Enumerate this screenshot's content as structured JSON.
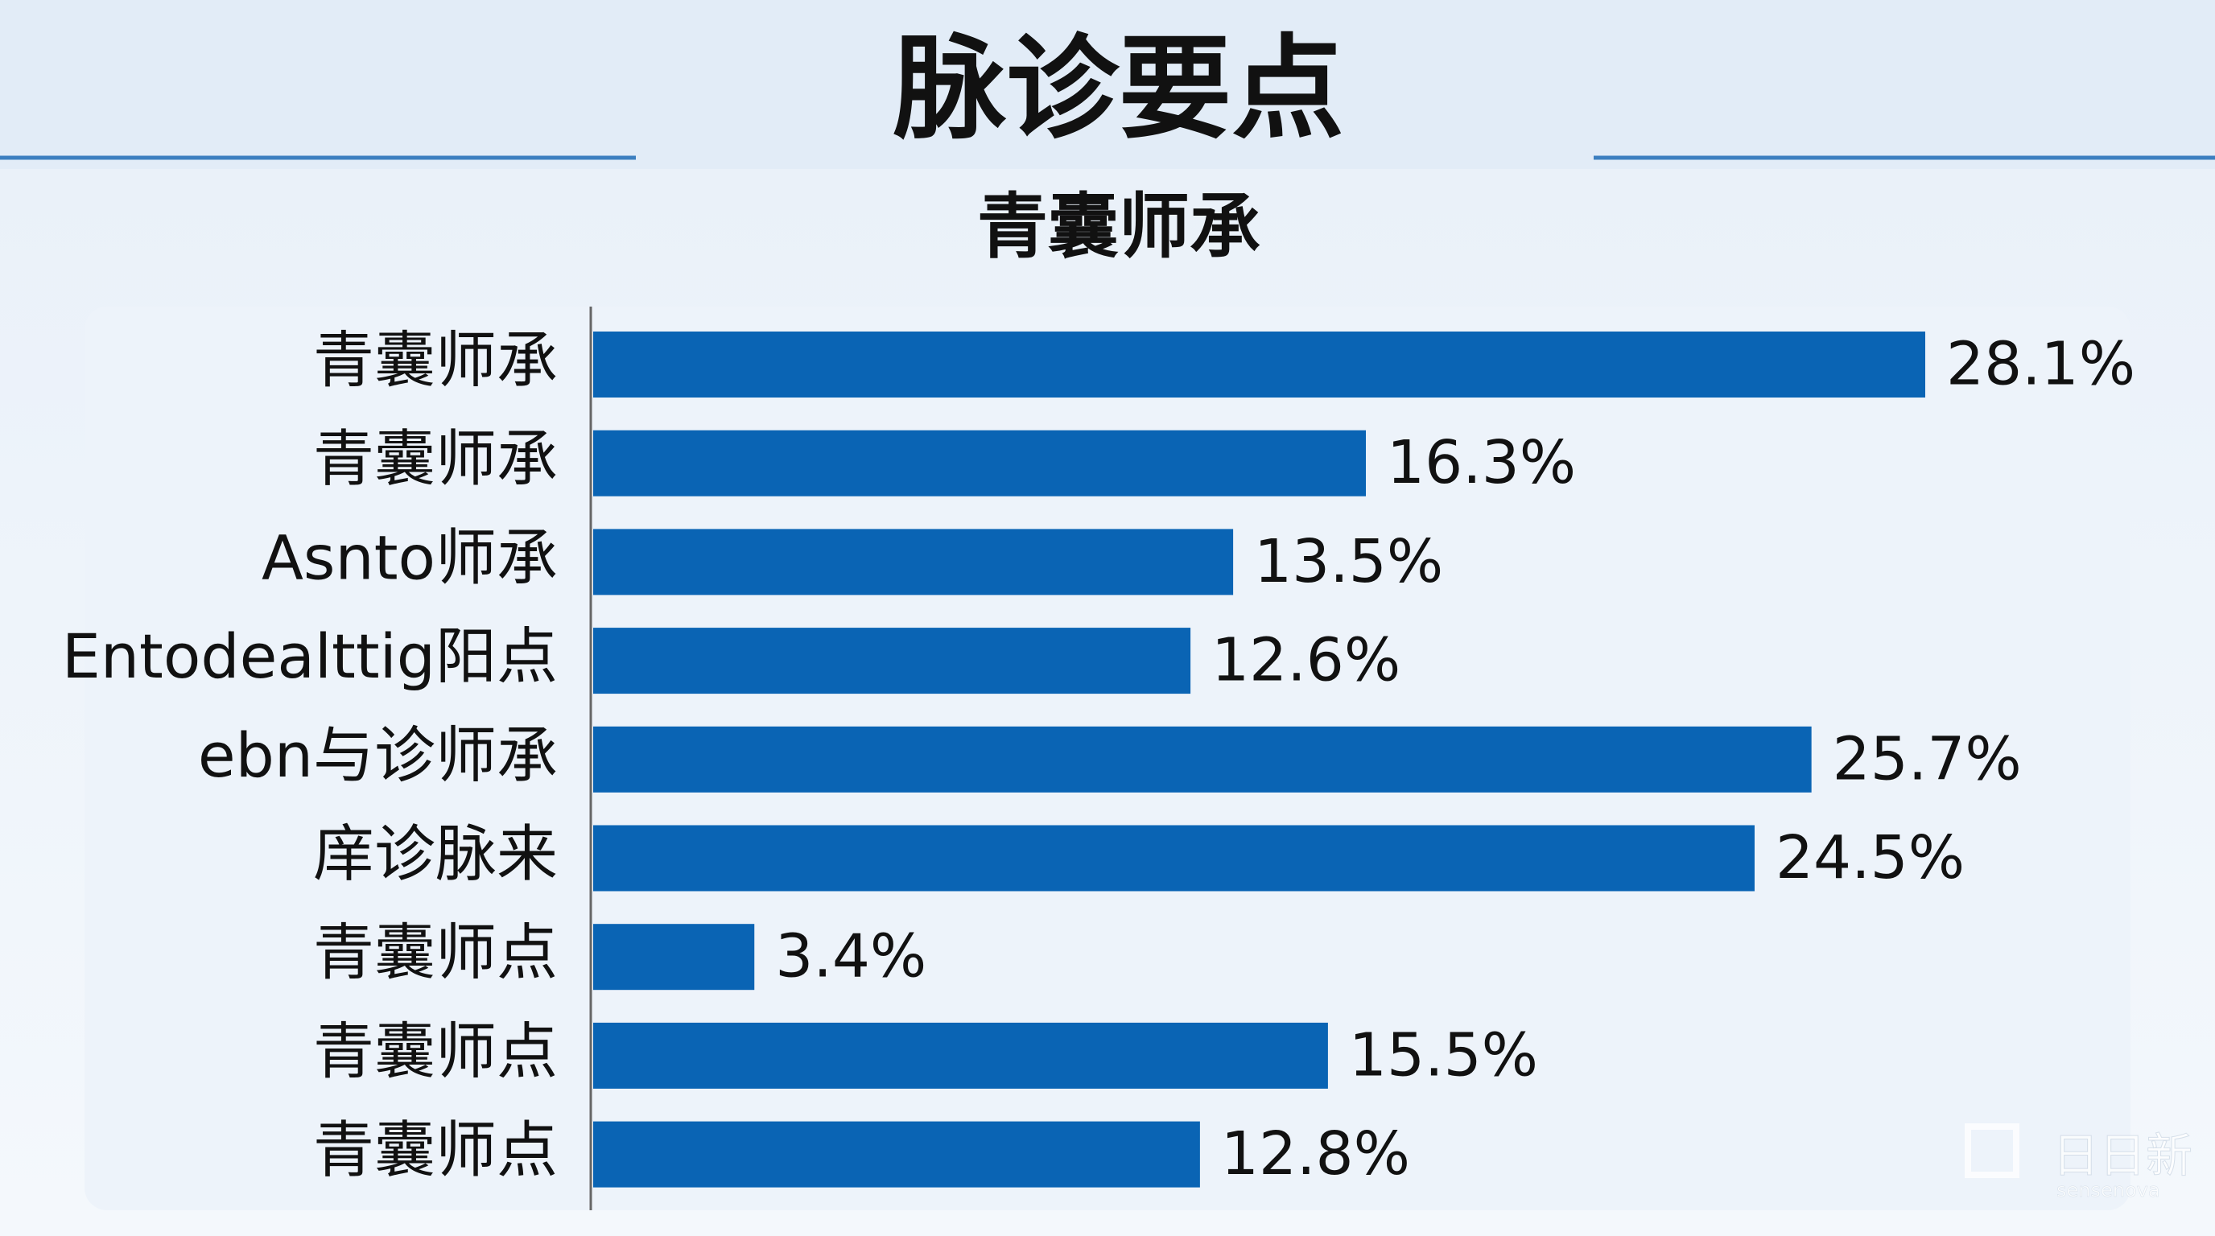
{
  "chart_data": {
    "type": "bar",
    "orientation": "horizontal",
    "title": "脉诊要点",
    "subtitle": "青囊师承",
    "categories": [
      "青囊师承",
      "青囊师承",
      "Asnto师承",
      "Entodealttig阳点",
      "ebn与诊师承",
      "庠诊脉来",
      "青囊师点",
      "青囊师点",
      "青囊师点"
    ],
    "values": [
      28.1,
      16.3,
      13.5,
      12.6,
      25.7,
      24.5,
      3.4,
      15.5,
      12.8
    ],
    "value_labels": [
      "28.1%",
      "16.3%",
      "13.5%",
      "12.6%",
      "25.7%",
      "24.5%",
      "3.4%",
      "15.5%",
      "12.8%"
    ],
    "color": "#0a64b4",
    "watermark": {
      "brand": "日日新",
      "sub": "sensenova"
    }
  }
}
